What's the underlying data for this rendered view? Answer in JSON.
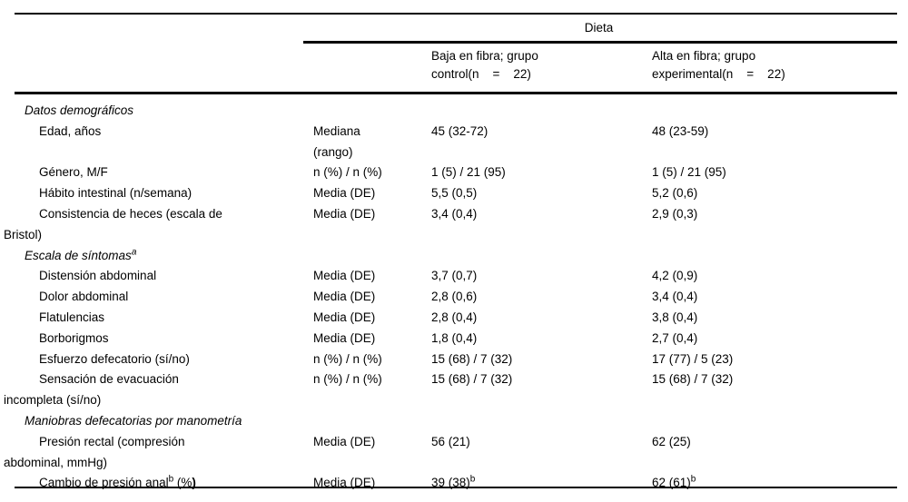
{
  "table": {
    "group_header": "Dieta",
    "columns": {
      "control": "Baja en fibra; grupo\ncontrol(n    =    22)",
      "experimental": "Alta en fibra; grupo\nexperimental(n    =    22)"
    },
    "rows": [
      {
        "type": "section",
        "label": "Datos demográficos"
      },
      {
        "type": "item",
        "label": "Edad, años",
        "stat": "Mediana\n(rango)",
        "control": "45 (32-72)",
        "experimental": "48 (23-59)"
      },
      {
        "type": "item",
        "label": "Género, M/F",
        "stat": "n (%) / n (%)",
        "control": "1 (5) / 21 (95)",
        "experimental": "1 (5) / 21 (95)"
      },
      {
        "type": "item",
        "label": "Hábito intestinal (n/semana)",
        "stat": "Media (DE)",
        "control": "5,5 (0,5)",
        "experimental": "5,2 (0,6)"
      },
      {
        "type": "item",
        "label": "Consistencia de heces (escala de\nBristol)",
        "stat": "Media (DE)",
        "control": "3,4 (0,4)",
        "experimental": "2,9 (0,3)"
      },
      {
        "type": "section",
        "label": [
          {
            "t": "Escala de síntomas"
          },
          {
            "t": "a",
            "s": "sup"
          }
        ]
      },
      {
        "type": "item",
        "label": "Distensión abdominal",
        "stat": "Media (DE)",
        "control": "3,7 (0,7)",
        "experimental": "4,2 (0,9)"
      },
      {
        "type": "item",
        "label": "Dolor abdominal",
        "stat": "Media (DE)",
        "control": "2,8 (0,6)",
        "experimental": "3,4 (0,4)"
      },
      {
        "type": "item",
        "label": "Flatulencias",
        "stat": "Media (DE)",
        "control": "2,8 (0,4)",
        "experimental": "3,8 (0,4)"
      },
      {
        "type": "item",
        "label": "Borborigmos",
        "stat": "Media (DE)",
        "control": "1,8 (0,4)",
        "experimental": "2,7 (0,4)"
      },
      {
        "type": "item",
        "label": "Esfuerzo defecatorio (sí/no)",
        "stat": "n (%) / n (%)",
        "control": "15 (68) / 7 (32)",
        "experimental": "17 (77) / 5 (23)"
      },
      {
        "type": "item",
        "label": "Sensación de evacuación\nincompleta (sí/no)",
        "stat": "n (%) / n (%)",
        "control": "15 (68) / 7 (32)",
        "experimental": "15 (68) / 7 (32)"
      },
      {
        "type": "section",
        "label": "Maniobras defecatorias por manometría"
      },
      {
        "type": "item",
        "label": "Presión rectal (compresión\nabdominal, mmHg)",
        "stat": "Media (DE)",
        "control": "56 (21)",
        "experimental": "62 (25)"
      },
      {
        "type": "item",
        "label": [
          {
            "t": "Cambio de presión anal"
          },
          {
            "t": "b",
            "s": "sup"
          },
          {
            "t": " (%"
          },
          {
            "t": ")",
            "s": "b"
          }
        ],
        "stat": "Media (DE)",
        "control": [
          {
            "t": "39 (38)"
          },
          {
            "t": "b",
            "s": "sup"
          }
        ],
        "experimental": [
          {
            "t": "62 (61)"
          },
          {
            "t": "b",
            "s": "sup"
          }
        ]
      }
    ]
  },
  "colors": {
    "text": "#000000",
    "background": "#ffffff",
    "rule": "#000000"
  }
}
